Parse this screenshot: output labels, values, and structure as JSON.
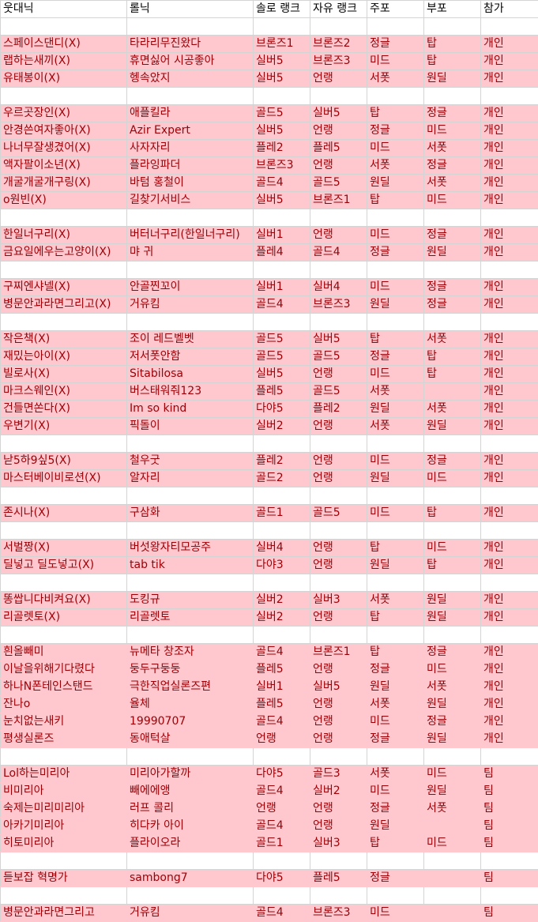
{
  "colors": {
    "highlight_fill": "#ffc7ce",
    "highlight_text": "#9c0006",
    "grid": "#d4d4d4"
  },
  "headers": [
    "웃대닉",
    "롤닉",
    "솔로 랭크",
    "자유 랭크",
    "주포",
    "부포",
    "참가"
  ],
  "groups": [
    {
      "bordered": true,
      "rows": [
        [
          "스페이스댄디(X)",
          "타라리무진왔다",
          "브론즈1",
          "브론즈2",
          "정글",
          "탑",
          "개인"
        ],
        [
          "랩하는새끼(X)",
          "휴면싫어 시공좋아",
          "실버5",
          "브론즈3",
          "미드",
          "탑",
          "개인"
        ],
        [
          "유태봉이(X)",
          "헹속았지",
          "실버5",
          "언랭",
          "서폿",
          "원딜",
          "개인"
        ]
      ]
    },
    {
      "bordered": true,
      "rows": [
        [
          "우르곳장인(X)",
          "애플킬라",
          "골드5",
          "실버5",
          "탑",
          "정글",
          "개인"
        ],
        [
          "안경쓴여자좋아(X)",
          "Azir Expert",
          "실버5",
          "언랭",
          "정글",
          "미드",
          "개인"
        ],
        [
          "나너무잘생겼어(X)",
          "사자자리",
          "플레2",
          "플레5",
          "미드",
          "서폿",
          "개인"
        ],
        [
          "액자팔이소년(X)",
          "플라잉파더",
          "브론즈3",
          "언랭",
          "서폿",
          "정글",
          "개인"
        ],
        [
          "개굴개굴개구링(X)",
          "바텀 홍철이",
          "골드4",
          "골드5",
          "원딜",
          "서폿",
          "개인"
        ],
        [
          "o원빈(X)",
          "길찾기서비스",
          "실버5",
          "브론즈1",
          "탑",
          "미드",
          "개인"
        ]
      ]
    },
    {
      "bordered": true,
      "rows": [
        [
          "한일너구리(X)",
          "버터너구리(한일너구리)",
          "실버1",
          "언랭",
          "미드",
          "정글",
          "개인"
        ],
        [
          "금요일에우는고양이(X)",
          "먀 귀",
          "플레4",
          "골드4",
          "정글",
          "원딜",
          "개인"
        ]
      ]
    },
    {
      "bordered": true,
      "rows": [
        [
          "구찌엔샤넬(X)",
          "안골찐꼬이",
          "실버1",
          "실버4",
          "미드",
          "정글",
          "개인"
        ],
        [
          "병문안과라면그리고(X)",
          "거유킴",
          "골드4",
          "브론즈3",
          "원딜",
          "정글",
          "개인"
        ]
      ]
    },
    {
      "bordered": true,
      "rows": [
        [
          "작은책(X)",
          "조이 레드벨벳",
          "골드5",
          "실버5",
          "탑",
          "서폿",
          "개인"
        ],
        [
          "재밌는아이(X)",
          "저서폿안함",
          "골드5",
          "골드5",
          "정글",
          "탑",
          "개인"
        ],
        [
          "빌로사(X)",
          "Sitabilosa",
          "실버5",
          "언랭",
          "미드",
          "탑",
          "개인"
        ],
        [
          "마크스웨인(X)",
          " 버스태워줘123",
          "플레5",
          "골드5",
          "서폿",
          "",
          "개인"
        ],
        [
          "건들면쏜다(X)",
          "Im so kind",
          "다야5",
          "플레2",
          "원딜",
          "서폿",
          "개인"
        ],
        [
          "우변기(X)",
          "픽돌이",
          "실버2",
          "언랭",
          "서폿",
          "원딜",
          "개인"
        ]
      ]
    },
    {
      "bordered": true,
      "rows": [
        [
          "낟5하9싶5(X)",
          "철우굿",
          "플레2",
          "언랭",
          "미드",
          "정글",
          "개인"
        ],
        [
          "마스터베이비로션(X)",
          "알자리",
          "골드2",
          "언랭",
          "원딜",
          "미드",
          "개인"
        ]
      ]
    },
    {
      "bordered": true,
      "rows": [
        [
          "존시나(X)",
          "구삼화",
          "골드1",
          "골드5",
          "미드",
          "탑",
          "개인"
        ]
      ]
    },
    {
      "bordered": true,
      "rows": [
        [
          "서벌짱(X)",
          "버섯왕자티모공주",
          "실버4",
          "언랭",
          "탑",
          "미드",
          "개인"
        ],
        [
          "딜넣고 딜도넣고(X)",
          "tab tik",
          "다야3",
          "언랭",
          "원딜",
          "탑",
          "개인"
        ]
      ]
    },
    {
      "bordered": true,
      "rows": [
        [
          "똥쌉니다비켜요(X)",
          "도킹규",
          "실버2",
          "실버3",
          "서폿",
          "원딜",
          "개인"
        ],
        [
          "리골렛토(X)",
          "리골렛토",
          "실버2",
          "언랭",
          "탑",
          "원딜",
          "개인"
        ]
      ]
    },
    {
      "bordered": false,
      "rows": [
        [
          "흰올빼미",
          "뉴메타 창조자",
          "골드4",
          "브론즈1",
          "탑",
          "정글",
          "개인"
        ],
        [
          "이날을위해기다렸다",
          "둥두구둥둥",
          "플레5",
          "언랭",
          "정글",
          "미드",
          "개인"
        ],
        [
          "하나N폰테인스탠드",
          "극한직업실론즈편",
          "실버1",
          "실버5",
          "원딜",
          "서폿",
          "개인"
        ],
        [
          "잔나o",
          "율체",
          "플레5",
          "언랭",
          "서폿",
          "원딜",
          "개인"
        ],
        [
          "눈치없는새키",
          "19990707",
          "골드4",
          "언랭",
          "미드",
          "정글",
          "개인"
        ],
        [
          "평생실론즈",
          "동애턱살",
          "언랭",
          "언랭",
          "정글",
          "원딜",
          "개인"
        ]
      ]
    },
    {
      "bordered": false,
      "rows": [
        [
          "Lol하는미리아",
          "미리아가할까",
          "다야5",
          "골드3",
          "서폿",
          "미드",
          "팀"
        ],
        [
          "비미리아",
          "빼에에앵",
          "골드4",
          "실버2",
          "미드",
          "원딜",
          "팀"
        ],
        [
          "숙제는미리미리아",
          "러프 콜리",
          "언랭",
          "언랭",
          "정글",
          "서폿",
          "팀"
        ],
        [
          "아카기미리아",
          "히다카 아이",
          "골드4",
          "언랭",
          "원딜",
          "",
          "팀"
        ],
        [
          "히토미리아",
          "플라이오라",
          "골드1",
          "실버3",
          "탑",
          "미드",
          "팀"
        ]
      ]
    },
    {
      "bordered": false,
      "rows": [
        [
          "듣보잡 혁명가",
          "sambong7",
          "다야5",
          "플레5",
          "정글",
          "",
          "팀"
        ]
      ]
    },
    {
      "bordered": false,
      "rows": [
        [
          "병문안과라면그리고",
          "거유킴",
          "골드4",
          "브론즈3",
          "미드",
          "",
          "팀"
        ]
      ]
    }
  ]
}
